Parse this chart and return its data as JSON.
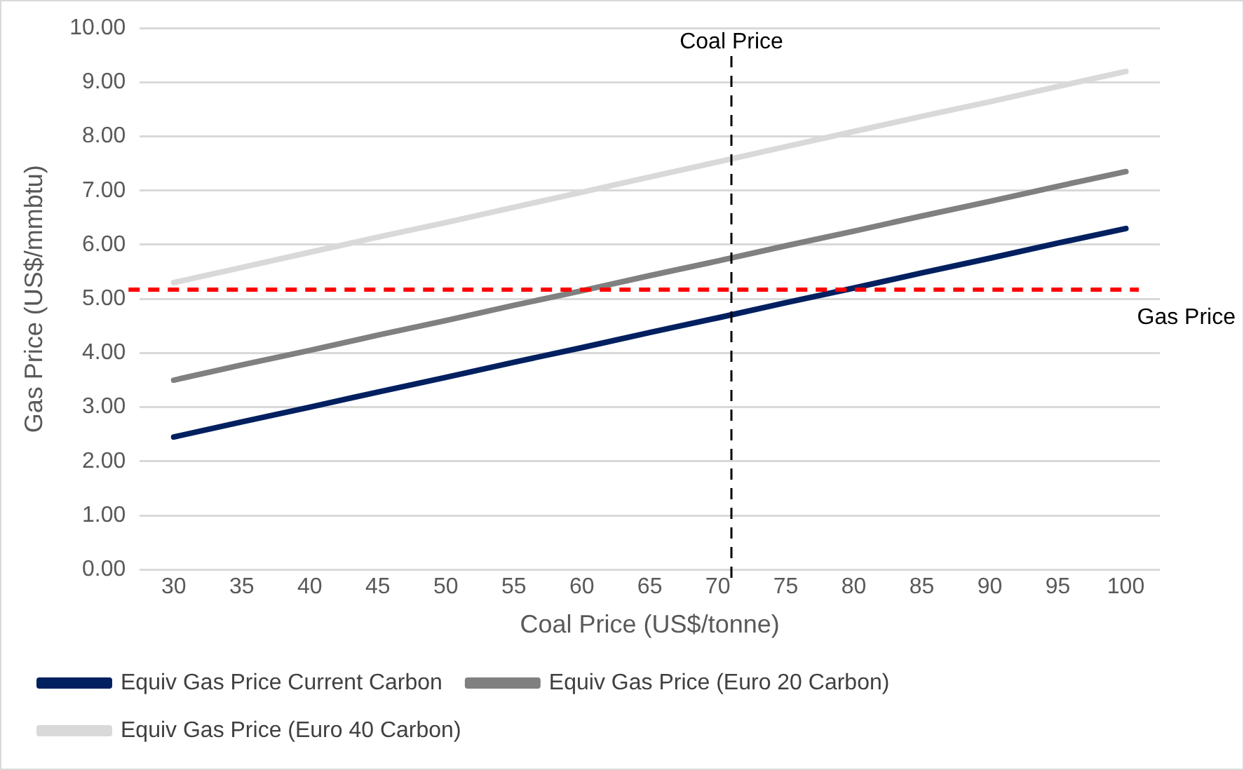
{
  "chart_data": {
    "type": "line",
    "xlabel": "Coal Price (US$/tonne)",
    "ylabel": "Gas Price (US$/mmbtu)",
    "x": [
      30,
      35,
      40,
      45,
      50,
      55,
      60,
      65,
      70,
      75,
      80,
      85,
      90,
      95,
      100
    ],
    "xlim": [
      27.5,
      102.5
    ],
    "xticks": [
      30,
      35,
      40,
      45,
      50,
      55,
      60,
      65,
      70,
      75,
      80,
      85,
      90,
      95,
      100
    ],
    "ylim": [
      0,
      10
    ],
    "yticks": [
      {
        "value": 0,
        "label": "0.00"
      },
      {
        "value": 1,
        "label": "1.00"
      },
      {
        "value": 2,
        "label": "2.00"
      },
      {
        "value": 3,
        "label": "3.00"
      },
      {
        "value": 4,
        "label": "4.00"
      },
      {
        "value": 5,
        "label": "5.00"
      },
      {
        "value": 6,
        "label": "6.00"
      },
      {
        "value": 7,
        "label": "7.00"
      },
      {
        "value": 8,
        "label": "8.00"
      },
      {
        "value": 9,
        "label": "9.00"
      },
      {
        "value": 10,
        "label": "10.00"
      }
    ],
    "series": [
      {
        "name": "Equiv Gas Price Current Carbon",
        "color": "#002060",
        "values": [
          2.45,
          2.73,
          3.0,
          3.28,
          3.55,
          3.83,
          4.1,
          4.38,
          4.65,
          4.93,
          5.2,
          5.48,
          5.75,
          6.03,
          6.3
        ]
      },
      {
        "name": "Equiv Gas Price (Euro 20 Carbon)",
        "color": "#808080",
        "values": [
          3.5,
          3.78,
          4.05,
          4.33,
          4.6,
          4.88,
          5.15,
          5.43,
          5.7,
          5.98,
          6.25,
          6.53,
          6.8,
          7.08,
          7.35
        ]
      },
      {
        "name": "Equiv Gas Price (Euro 40 Carbon)",
        "color": "#d9d9d9",
        "values": [
          5.3,
          5.58,
          5.86,
          6.14,
          6.41,
          6.69,
          6.97,
          7.25,
          7.53,
          7.81,
          8.09,
          8.37,
          8.64,
          8.92,
          9.2
        ]
      }
    ],
    "ref_lines": [
      {
        "axis": "y",
        "value": 5.17,
        "label": "Gas Price",
        "color": "#ff0000",
        "line_style": "dashed"
      },
      {
        "axis": "x",
        "value": 71,
        "label": "Coal Price",
        "color": "#000000",
        "line_style": "dashed"
      }
    ],
    "grid": "y",
    "legend": "bottom",
    "marker": "none",
    "line_style": "solid"
  }
}
